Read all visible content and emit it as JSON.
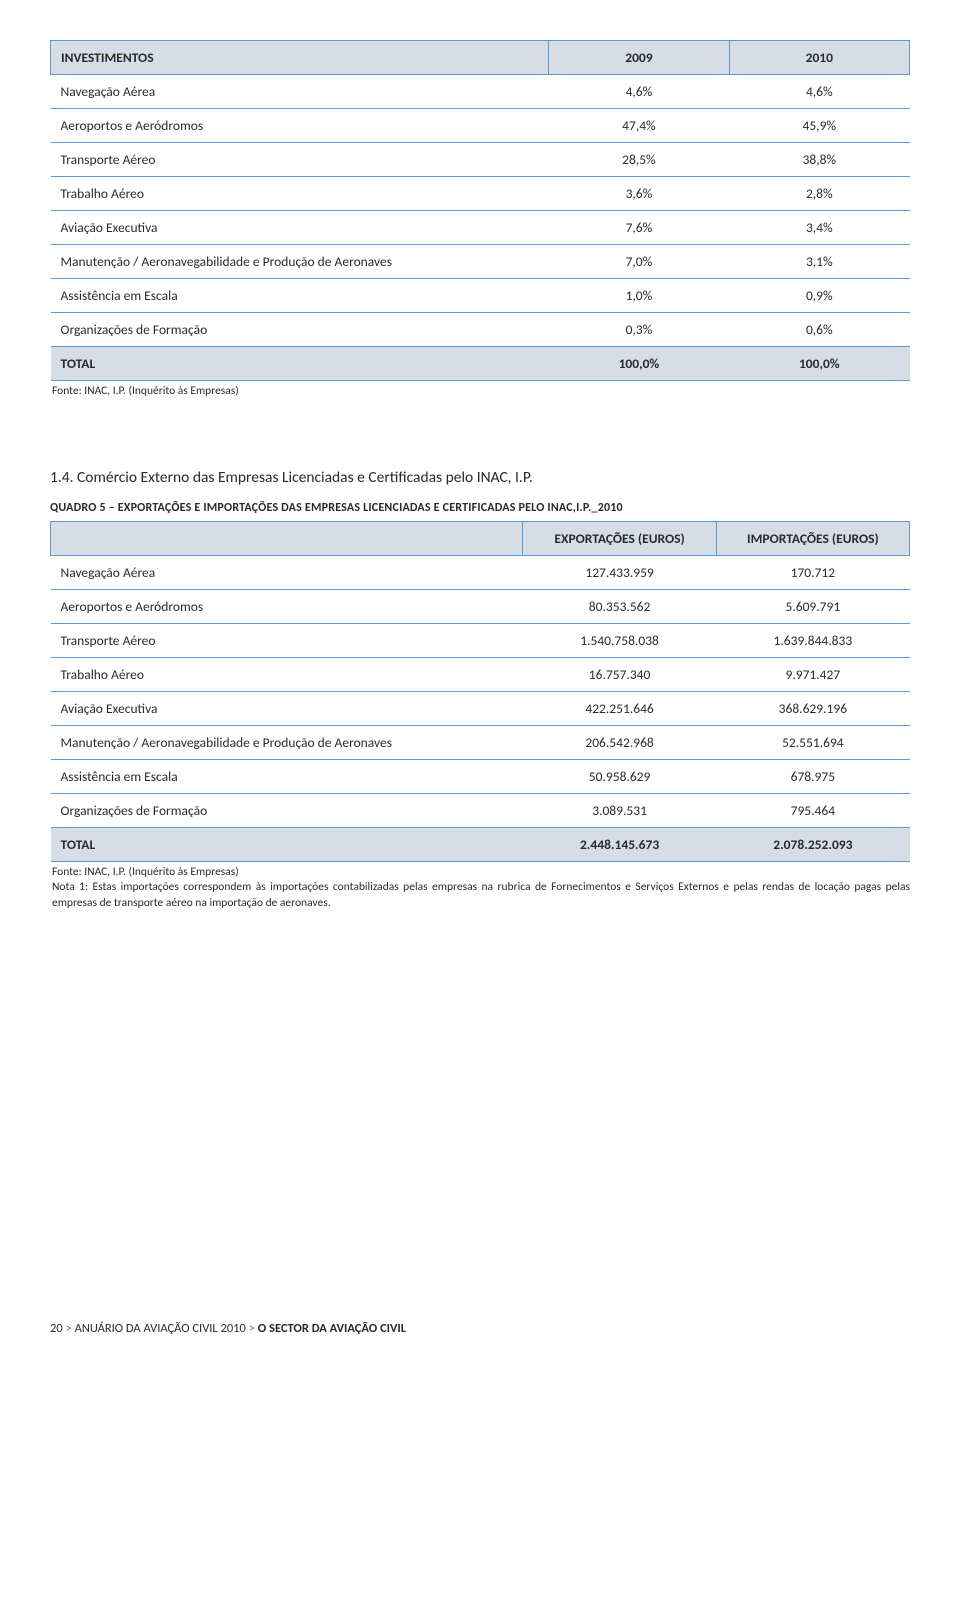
{
  "table1": {
    "columns": [
      "INVESTIMENTOS",
      "2009",
      "2010"
    ],
    "rows": [
      [
        "Navegação Aérea",
        "4,6%",
        "4,6%"
      ],
      [
        "Aeroportos e Aeródromos",
        "47,4%",
        "45,9%"
      ],
      [
        "Transporte Aéreo",
        "28,5%",
        "38,8%"
      ],
      [
        "Trabalho Aéreo",
        "3,6%",
        "2,8%"
      ],
      [
        "Aviação Executiva",
        "7,6%",
        "3,4%"
      ],
      [
        "Manutenção / Aeronavegabilidade e Produção de Aeronaves",
        "7,0%",
        "3,1%"
      ],
      [
        "Assistência em Escala",
        "1,0%",
        "0,9%"
      ],
      [
        "Organizações de Formação",
        "0,3%",
        "0,6%"
      ]
    ],
    "total": [
      "TOTAL",
      "100,0%",
      "100,0%"
    ],
    "source": "Fonte: INAC, I.P. (Inquérito às Empresas)"
  },
  "section_heading": "1.4. Comércio Externo das Empresas Licenciadas e Certificadas pelo INAC, I.P.",
  "table2": {
    "title": "QUADRO 5 – EXPORTAÇÕES E IMPORTAÇÕES DAS EMPRESAS LICENCIADAS E CERTIFICADAS PELO INAC,I.P._2010",
    "columns": [
      "",
      "EXPORTAÇÕES (EUROS)",
      "IMPORTAÇÕES (EUROS)"
    ],
    "rows": [
      [
        "Navegação Aérea",
        "127.433.959",
        "170.712"
      ],
      [
        "Aeroportos e Aeródromos",
        "80.353.562",
        "5.609.791"
      ],
      [
        "Transporte Aéreo",
        "1.540.758.038",
        "1.639.844.833"
      ],
      [
        "Trabalho Aéreo",
        "16.757.340",
        "9.971.427"
      ],
      [
        "Aviação Executiva",
        "422.251.646",
        "368.629.196"
      ],
      [
        "Manutenção / Aeronavegabilidade e Produção de Aeronaves",
        "206.542.968",
        "52.551.694"
      ],
      [
        "Assistência em Escala",
        "50.958.629",
        "678.975"
      ],
      [
        "Organizações de Formação",
        "3.089.531",
        "795.464"
      ]
    ],
    "total": [
      "TOTAL",
      "2.448.145.673",
      "2.078.252.093"
    ],
    "source": "Fonte: INAC, I.P. (Inquérito às Empresas)",
    "note": "Nota 1: Estas importações correspondem às importações contabilizadas pelas empresas na rubrica de Fornecimentos e Serviços Externos e pelas rendas de locação pagas pelas empresas de transporte aéreo na importação de aeronaves."
  },
  "footer": {
    "page": "20",
    "sep": " > ",
    "part1": "ANUÁRIO DA AVIAÇÃO CIVIL 2010",
    "part2": "O SECTOR DA AVIAÇÃO CIVIL"
  },
  "colors": {
    "header_bg": "#d6dde6",
    "border": "#5b9bd5",
    "text": "#2a2a2a",
    "blue_text": "#3b6fb0"
  }
}
